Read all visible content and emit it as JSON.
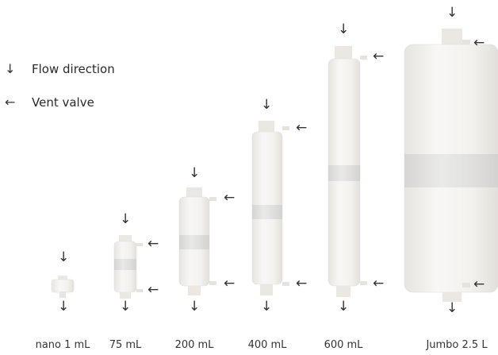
{
  "legend": {
    "flow_icon": "arrow-down",
    "flow_label": "Flow direction",
    "vent_icon": "arrow-left",
    "vent_label": "Vent valve"
  },
  "glyphs": {
    "down": "↓",
    "left": "←"
  },
  "capsules": [
    {
      "label": "nano 1 mL"
    },
    {
      "label": "75 mL"
    },
    {
      "label": "200 mL"
    },
    {
      "label": "400 mL"
    },
    {
      "label": "600 mL"
    },
    {
      "label": "Jumbo 2.5 L"
    }
  ],
  "colors": {
    "body": "#f3f1ee",
    "band": "#d9d9d9",
    "shadow": "#e6e3df",
    "arrow": "#333333"
  }
}
